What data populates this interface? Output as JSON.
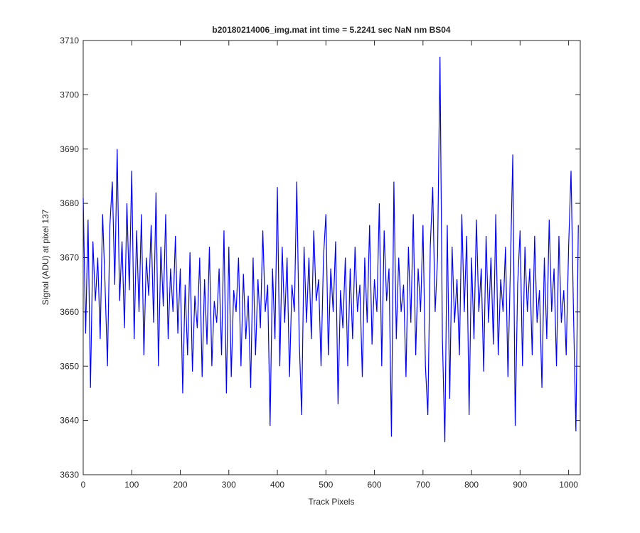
{
  "chart_data": {
    "type": "line",
    "title": "b20180214006_img.mat int time = 5.2241 sec  NaN nm BS04",
    "x_label": "Track Pixels",
    "y_label": "Signal (ADU) at pixel 137",
    "xlim": [
      0,
      1024
    ],
    "ylim": [
      3630,
      3710
    ],
    "xticks": [
      0,
      100,
      200,
      300,
      400,
      500,
      600,
      700,
      800,
      900,
      1000
    ],
    "yticks": [
      3630,
      3640,
      3650,
      3660,
      3670,
      3680,
      3690,
      3700,
      3710
    ],
    "grid": false,
    "x": [
      0,
      5,
      10,
      15,
      20,
      25,
      30,
      35,
      40,
      45,
      50,
      55,
      60,
      65,
      70,
      75,
      80,
      85,
      90,
      95,
      100,
      105,
      110,
      115,
      120,
      125,
      130,
      135,
      140,
      145,
      150,
      155,
      160,
      165,
      170,
      175,
      180,
      185,
      190,
      195,
      200,
      205,
      210,
      215,
      220,
      225,
      230,
      235,
      240,
      245,
      250,
      255,
      260,
      265,
      270,
      275,
      280,
      285,
      290,
      295,
      300,
      305,
      310,
      315,
      320,
      325,
      330,
      335,
      340,
      345,
      350,
      355,
      360,
      365,
      370,
      375,
      380,
      385,
      390,
      395,
      400,
      405,
      410,
      415,
      420,
      425,
      430,
      435,
      440,
      445,
      450,
      455,
      460,
      465,
      470,
      475,
      480,
      485,
      490,
      495,
      500,
      505,
      510,
      515,
      520,
      525,
      530,
      535,
      540,
      545,
      550,
      555,
      560,
      565,
      570,
      575,
      580,
      585,
      590,
      595,
      600,
      605,
      610,
      615,
      620,
      625,
      630,
      635,
      640,
      645,
      650,
      655,
      660,
      665,
      670,
      675,
      680,
      685,
      690,
      695,
      700,
      705,
      710,
      715,
      720,
      725,
      730,
      735,
      740,
      745,
      750,
      755,
      760,
      765,
      770,
      775,
      780,
      785,
      790,
      795,
      800,
      805,
      810,
      815,
      820,
      825,
      830,
      835,
      840,
      845,
      850,
      855,
      860,
      865,
      870,
      875,
      880,
      885,
      890,
      895,
      900,
      905,
      910,
      915,
      920,
      925,
      930,
      935,
      940,
      945,
      950,
      955,
      960,
      965,
      970,
      975,
      980,
      985,
      990,
      995,
      1000,
      1005,
      1010,
      1015,
      1020
    ],
    "series": [
      {
        "color": "#0000ff",
        "values": [
          3681,
          3656,
          3677,
          3646,
          3673,
          3662,
          3670,
          3655,
          3678,
          3665,
          3650,
          3676,
          3684,
          3665,
          3690,
          3662,
          3673,
          3657,
          3680,
          3664,
          3686,
          3655,
          3675,
          3660,
          3678,
          3652,
          3670,
          3663,
          3676,
          3658,
          3682,
          3650,
          3672,
          3661,
          3678,
          3655,
          3668,
          3660,
          3674,
          3656,
          3668,
          3645,
          3665,
          3652,
          3671,
          3649,
          3663,
          3657,
          3670,
          3648,
          3666,
          3654,
          3672,
          3650,
          3662,
          3658,
          3668,
          3652,
          3675,
          3645,
          3672,
          3648,
          3664,
          3660,
          3670,
          3650,
          3667,
          3655,
          3663,
          3646,
          3670,
          3652,
          3666,
          3657,
          3675,
          3660,
          3665,
          3639,
          3668,
          3655,
          3683,
          3650,
          3672,
          3658,
          3670,
          3648,
          3665,
          3660,
          3684,
          3655,
          3641,
          3672,
          3658,
          3670,
          3655,
          3675,
          3662,
          3666,
          3650,
          3670,
          3678,
          3652,
          3668,
          3660,
          3673,
          3643,
          3664,
          3657,
          3670,
          3650,
          3668,
          3655,
          3672,
          3660,
          3665,
          3648,
          3670,
          3658,
          3676,
          3654,
          3666,
          3660,
          3680,
          3650,
          3675,
          3662,
          3668,
          3637,
          3684,
          3655,
          3670,
          3660,
          3665,
          3648,
          3672,
          3658,
          3678,
          3652,
          3668,
          3660,
          3676,
          3650,
          3641,
          3672,
          3683,
          3660,
          3670,
          3707,
          3655,
          3636,
          3676,
          3644,
          3672,
          3658,
          3666,
          3652,
          3678,
          3660,
          3674,
          3641,
          3670,
          3655,
          3677,
          3660,
          3668,
          3649,
          3674,
          3658,
          3670,
          3654,
          3678,
          3652,
          3666,
          3660,
          3672,
          3648,
          3668,
          3689,
          3639,
          3665,
          3675,
          3650,
          3672,
          3660,
          3668,
          3652,
          3674,
          3658,
          3664,
          3646,
          3670,
          3655,
          3677,
          3660,
          3668,
          3650,
          3674,
          3658,
          3664,
          3652,
          3672,
          3686,
          3660,
          3638,
          3676
        ]
      }
    ]
  }
}
